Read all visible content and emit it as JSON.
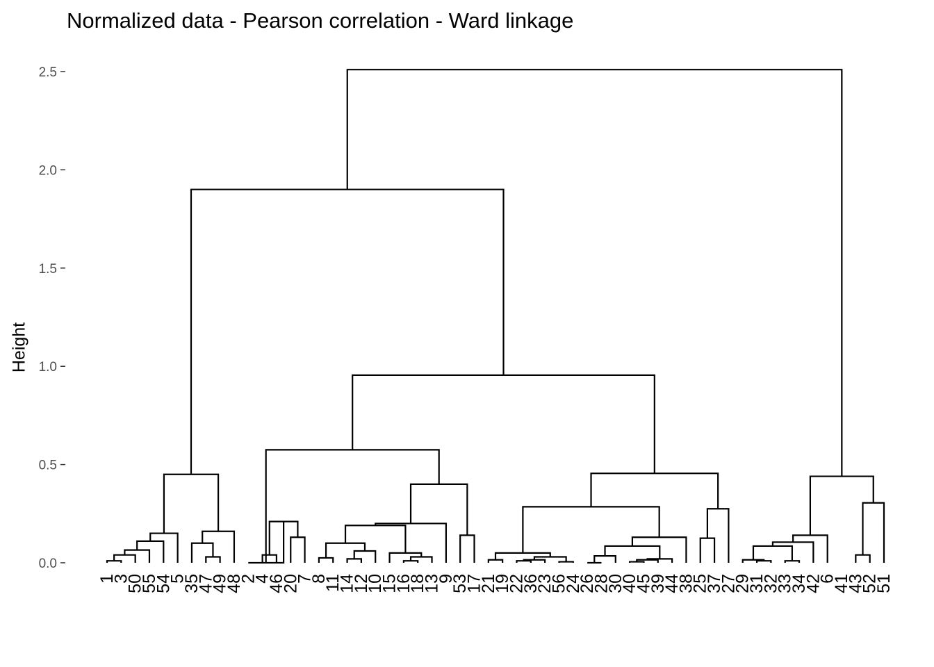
{
  "chart_data": {
    "type": "dendrogram",
    "title": "Normalized data - Pearson correlation - Ward linkage",
    "xlabel": "",
    "ylabel": "Height",
    "ylim": [
      0,
      2.5
    ],
    "yticks": [
      "0.0",
      "0.5",
      "1.0",
      "1.5",
      "2.0",
      "2.5"
    ],
    "leaves": [
      "1",
      "3",
      "50",
      "55",
      "54",
      "5",
      "35",
      "47",
      "49",
      "48",
      "2",
      "4",
      "46",
      "20",
      "7",
      "8",
      "11",
      "14",
      "12",
      "10",
      "15",
      "16",
      "18",
      "13",
      "9",
      "53",
      "17",
      "21",
      "19",
      "22",
      "36",
      "23",
      "56",
      "24",
      "26",
      "28",
      "30",
      "40",
      "45",
      "39",
      "44",
      "38",
      "25",
      "37",
      "27",
      "29",
      "31",
      "32",
      "33",
      "34",
      "42",
      "6",
      "41",
      "43",
      "52",
      "51"
    ],
    "merges": [
      {
        "a": "1",
        "b": "3",
        "h": 0.01
      },
      {
        "a": "m1",
        "b": "50",
        "h": 0.04
      },
      {
        "a": "m2",
        "b": "55",
        "h": 0.065
      },
      {
        "a": "m3",
        "b": "54",
        "h": 0.11
      },
      {
        "a": "m4",
        "b": "5",
        "h": 0.15
      },
      {
        "a": "47",
        "b": "49",
        "h": 0.03
      },
      {
        "a": "35",
        "b": "m6",
        "h": 0.1
      },
      {
        "a": "m7",
        "b": "48",
        "h": 0.16
      },
      {
        "a": "m5",
        "b": "m8",
        "h": 0.45
      },
      {
        "a": "4",
        "b": "46",
        "h": 0.04
      },
      {
        "a": "20",
        "b": "7",
        "h": 0.13
      },
      {
        "a": "m10",
        "b": "m11",
        "h": 0.21
      },
      {
        "a": "2",
        "b": "m12",
        "h": 0.0
      },
      {
        "a": "8",
        "b": "11",
        "h": 0.025
      },
      {
        "a": "14",
        "b": "12",
        "h": 0.02
      },
      {
        "a": "m15",
        "b": "10",
        "h": 0.06
      },
      {
        "a": "m14",
        "b": "m16",
        "h": 0.1
      },
      {
        "a": "16",
        "b": "18",
        "h": 0.01
      },
      {
        "a": "m18",
        "b": "13",
        "h": 0.03
      },
      {
        "a": "15",
        "b": "m19",
        "h": 0.05
      },
      {
        "a": "m17",
        "b": "m20",
        "h": 0.19
      },
      {
        "a": "m21",
        "b": "9",
        "h": 0.2
      },
      {
        "a": "53",
        "b": "17",
        "h": 0.14
      },
      {
        "a": "m22",
        "b": "m23",
        "h": 0.4
      },
      {
        "a": "m13",
        "b": "m24",
        "h": 0.575
      },
      {
        "a": "21",
        "b": "19",
        "h": 0.015
      },
      {
        "a": "22",
        "b": "36",
        "h": 0.01
      },
      {
        "a": "m27",
        "b": "23",
        "h": 0.015
      },
      {
        "a": "56",
        "b": "24",
        "h": 0.005
      },
      {
        "a": "m28",
        "b": "m29",
        "h": 0.03
      },
      {
        "a": "m26",
        "b": "m30",
        "h": 0.05
      },
      {
        "a": "26",
        "b": "28",
        "h": 0.0
      },
      {
        "a": "m32",
        "b": "30",
        "h": 0.035
      },
      {
        "a": "40",
        "b": "45",
        "h": 0.005
      },
      {
        "a": "m34",
        "b": "39",
        "h": 0.015
      },
      {
        "a": "m35",
        "b": "44",
        "h": 0.02
      },
      {
        "a": "m33",
        "b": "m36",
        "h": 0.085
      },
      {
        "a": "m37",
        "b": "38",
        "h": 0.13
      },
      {
        "a": "m31",
        "b": "m38",
        "h": 0.285
      },
      {
        "a": "25",
        "b": "37",
        "h": 0.125
      },
      {
        "a": "m40",
        "b": "27",
        "h": 0.275
      },
      {
        "a": "m39",
        "b": "m41",
        "h": 0.455
      },
      {
        "a": "m25",
        "b": "m42",
        "h": 0.955
      },
      {
        "a": "m9",
        "b": "m43",
        "h": 1.9
      },
      {
        "a": "31",
        "b": "32",
        "h": 0.01
      },
      {
        "a": "29",
        "b": "m45",
        "h": 0.015
      },
      {
        "a": "33",
        "b": "34",
        "h": 0.01
      },
      {
        "a": "m46",
        "b": "m47",
        "h": 0.085
      },
      {
        "a": "m48",
        "b": "42",
        "h": 0.105
      },
      {
        "a": "m49",
        "b": "6",
        "h": 0.14
      },
      {
        "a": "43",
        "b": "52",
        "h": 0.04
      },
      {
        "a": "m51",
        "b": "51",
        "h": 0.305
      },
      {
        "a": "m50",
        "b": "m52",
        "h": 0.44
      },
      {
        "a": "m50b",
        "b": "",
        "h": 0
      },
      {
        "a": "m44",
        "b": "m53",
        "h": 2.51
      }
    ],
    "line_color": "#000000",
    "grid": false
  }
}
